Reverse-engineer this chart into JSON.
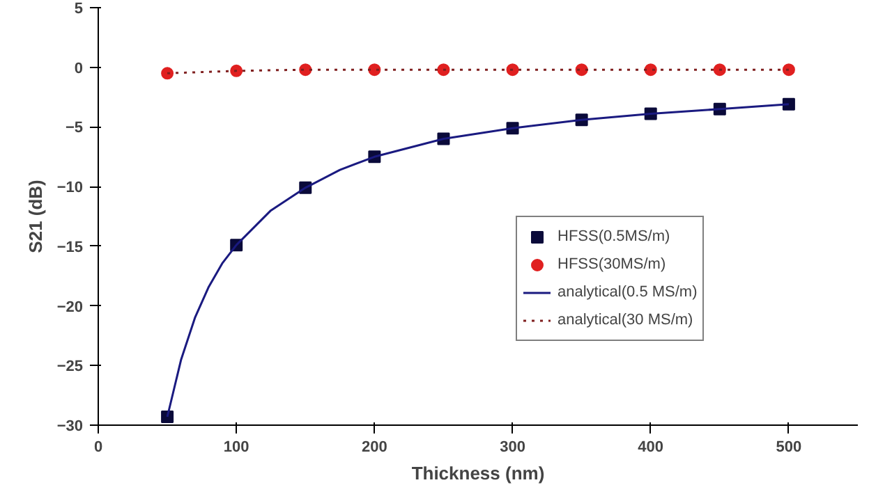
{
  "chart_data": {
    "type": "line",
    "xlabel": "Thickness (nm)",
    "ylabel": "S21 (dB)",
    "xlim": [
      0,
      550
    ],
    "xticks": [
      0,
      100,
      200,
      300,
      400,
      500
    ],
    "ylim": [
      -30,
      5
    ],
    "yticks": [
      -30,
      -25,
      -20,
      -15,
      -10,
      -5,
      0,
      5
    ],
    "grid": false,
    "legend": "bottom right",
    "series": [
      {
        "name": "HFSS(0.5MS/m)",
        "type": "scatter",
        "marker": "square",
        "color": "#0a0a3a",
        "x": [
          50,
          100,
          150,
          200,
          250,
          300,
          350,
          400,
          450,
          500
        ],
        "values": [
          -29.3,
          -14.9,
          -10.1,
          -7.5,
          -6.0,
          -5.1,
          -4.4,
          -3.9,
          -3.5,
          -3.1
        ]
      },
      {
        "name": "HFSS(30MS/m)",
        "type": "scatter",
        "marker": "circle",
        "color": "#e02020",
        "x": [
          50,
          100,
          150,
          200,
          250,
          300,
          350,
          400,
          450,
          500
        ],
        "values": [
          -0.5,
          -0.3,
          -0.2,
          -0.2,
          -0.2,
          -0.2,
          -0.2,
          -0.2,
          -0.2,
          -0.2
        ]
      },
      {
        "name": "analytical(0.5 MS/m)",
        "line_style": "solid",
        "color": "#1a1a80",
        "x": [
          50,
          60,
          70,
          80,
          90,
          100,
          125,
          150,
          175,
          200,
          250,
          300,
          350,
          400,
          450,
          500
        ],
        "values": [
          -29.3,
          -24.5,
          -21.0,
          -18.4,
          -16.4,
          -14.9,
          -12.0,
          -10.1,
          -8.6,
          -7.5,
          -6.0,
          -5.1,
          -4.4,
          -3.9,
          -3.5,
          -3.1
        ]
      },
      {
        "name": "analytical(30 MS/m)",
        "type": "line",
        "line_style": "dotted",
        "color": "#802020",
        "x": [
          50,
          100,
          150,
          200,
          250,
          300,
          350,
          400,
          450,
          500
        ],
        "values": [
          -0.5,
          -0.3,
          -0.2,
          -0.2,
          -0.2,
          -0.2,
          -0.2,
          -0.2,
          -0.2,
          -0.2
        ]
      }
    ]
  }
}
